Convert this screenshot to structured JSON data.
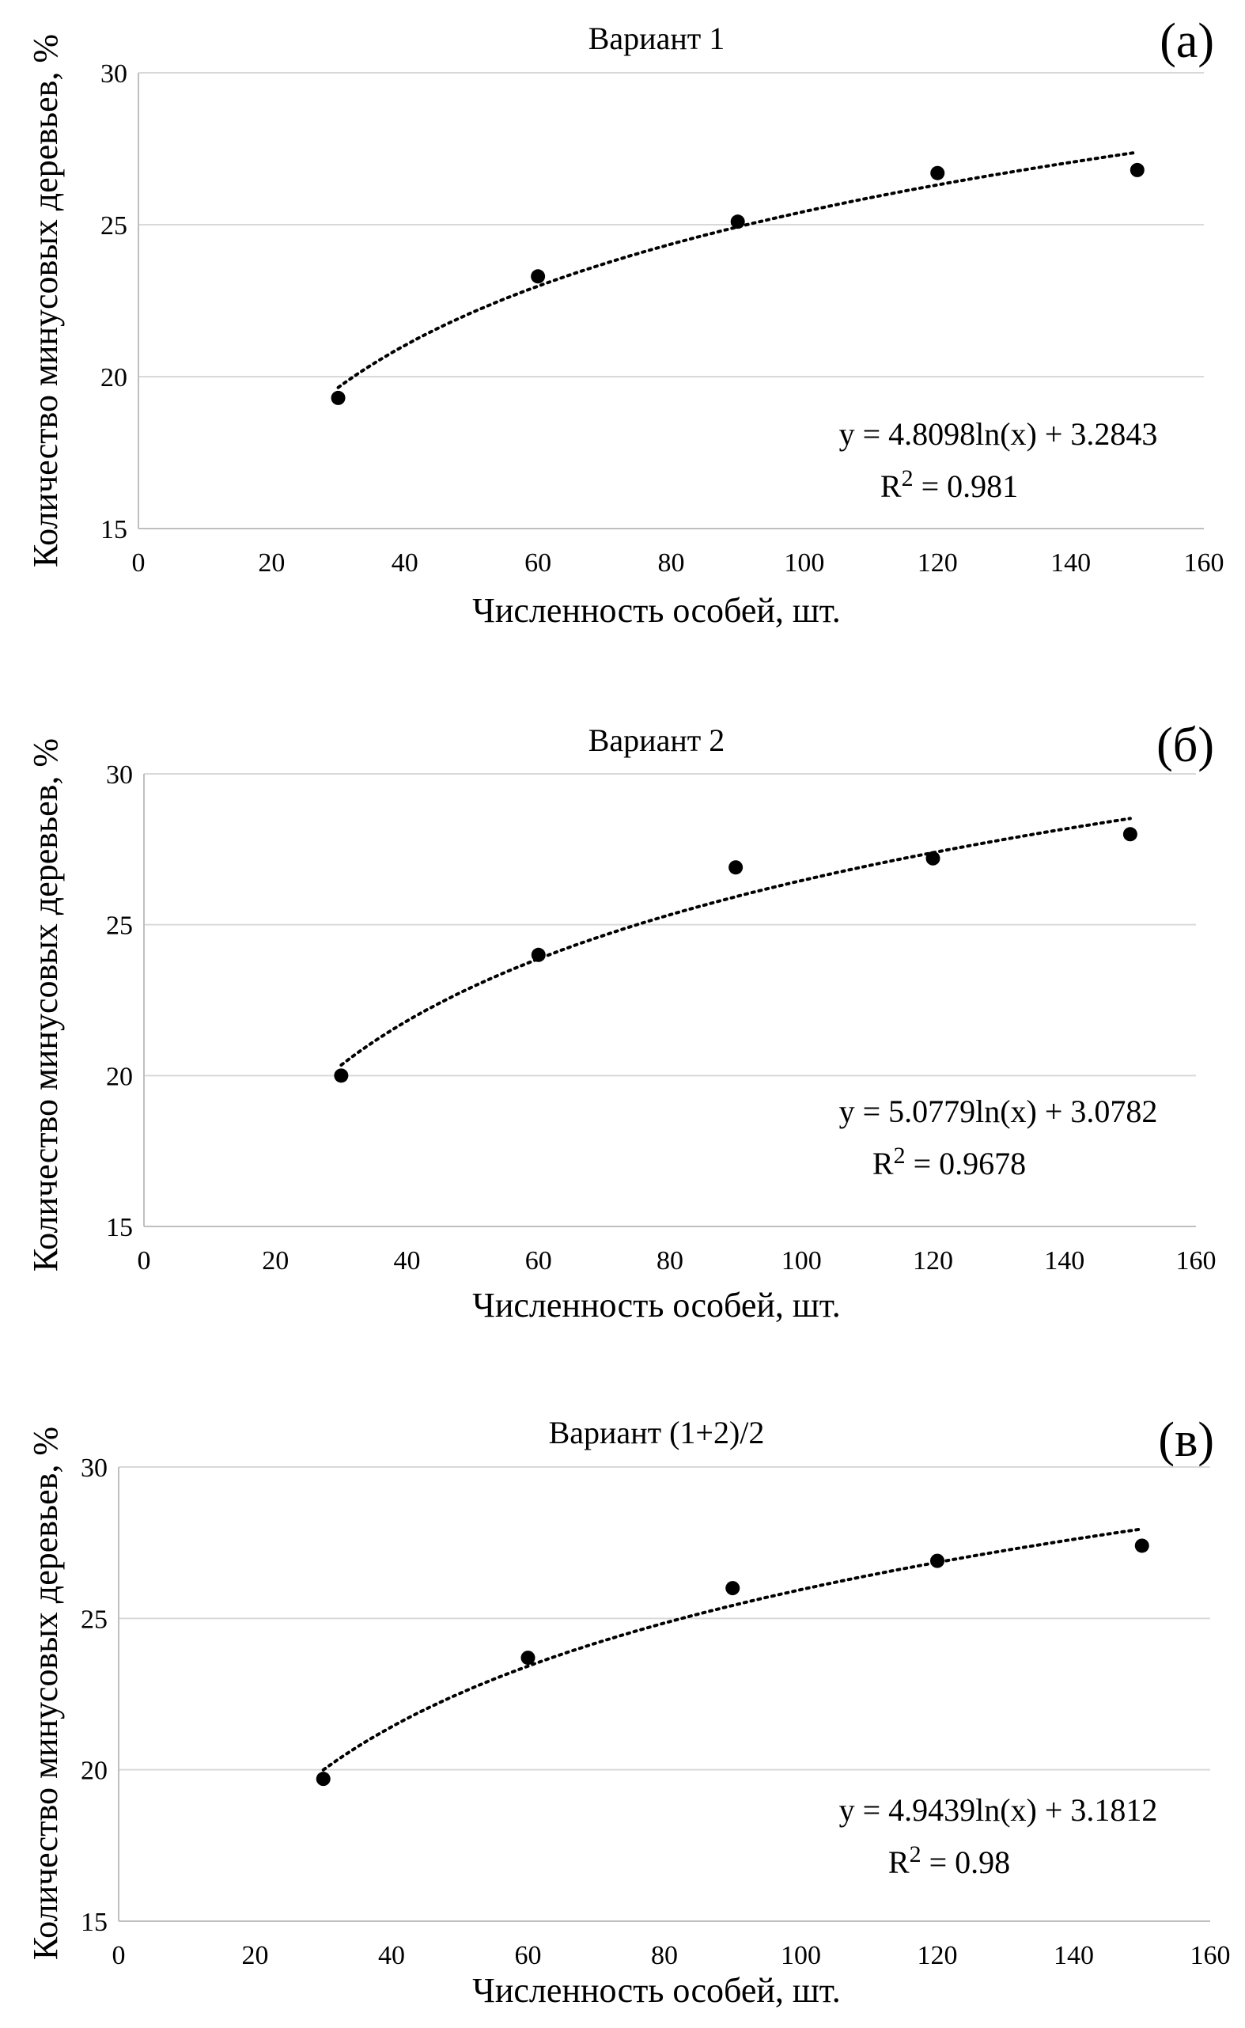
{
  "chart_data": [
    {
      "type": "scatter",
      "panel_label": "(а)",
      "title": "Вариант 1",
      "xlabel": "Численность особей, шт.",
      "ylabel": "Количество минусовых деревьев, %",
      "xlim": [
        0,
        160
      ],
      "ylim": [
        15,
        30
      ],
      "xticks": [
        0,
        20,
        40,
        60,
        80,
        100,
        120,
        140,
        160
      ],
      "yticks": [
        15,
        20,
        25,
        30
      ],
      "x": [
        30,
        60,
        90,
        120,
        150
      ],
      "y": [
        19.3,
        23.3,
        25.1,
        26.7,
        26.8
      ],
      "trendline": {
        "type": "log",
        "a": 4.8098,
        "b": 3.2843,
        "from": 30,
        "to": 150
      },
      "equation": "y = 4.8098ln(x) + 3.2843",
      "r2_label": "R",
      "r2_sup": "2",
      "r2_value": " = 0.981",
      "grid": true
    },
    {
      "type": "scatter",
      "panel_label": "(б)",
      "title": "Вариант 2",
      "xlabel": "Численность особей, шт.",
      "ylabel": "Количество минусовых деревьев, %",
      "xlim": [
        0,
        160
      ],
      "ylim": [
        15,
        30
      ],
      "xticks": [
        0,
        20,
        40,
        60,
        80,
        100,
        120,
        140,
        160
      ],
      "yticks": [
        15,
        20,
        25,
        30
      ],
      "x": [
        30,
        60,
        90,
        120,
        150
      ],
      "y": [
        20.0,
        24.0,
        26.9,
        27.2,
        28.0
      ],
      "trendline": {
        "type": "log",
        "a": 5.0779,
        "b": 3.0782,
        "from": 30,
        "to": 150
      },
      "equation": "y = 5.0779ln(x) + 3.0782",
      "r2_label": "R",
      "r2_sup": "2",
      "r2_value": " = 0.9678",
      "grid": true
    },
    {
      "type": "scatter",
      "panel_label": "(в)",
      "title": "Вариант (1+2)/2",
      "xlabel": "Численность особей, шт.",
      "ylabel": "Количество минусовых деревьев, %",
      "xlim": [
        0,
        160
      ],
      "ylim": [
        15,
        30
      ],
      "xticks": [
        0,
        20,
        40,
        60,
        80,
        100,
        120,
        140,
        160
      ],
      "yticks": [
        15,
        20,
        25,
        30
      ],
      "x": [
        30,
        60,
        90,
        120,
        150
      ],
      "y": [
        19.7,
        23.7,
        26.0,
        26.9,
        27.4
      ],
      "trendline": {
        "type": "log",
        "a": 4.9439,
        "b": 3.1812,
        "from": 30,
        "to": 150
      },
      "equation": "y = 4.9439ln(x) + 3.1812",
      "r2_label": "R",
      "r2_sup": "2",
      "r2_value": " = 0.98",
      "grid": true
    }
  ]
}
